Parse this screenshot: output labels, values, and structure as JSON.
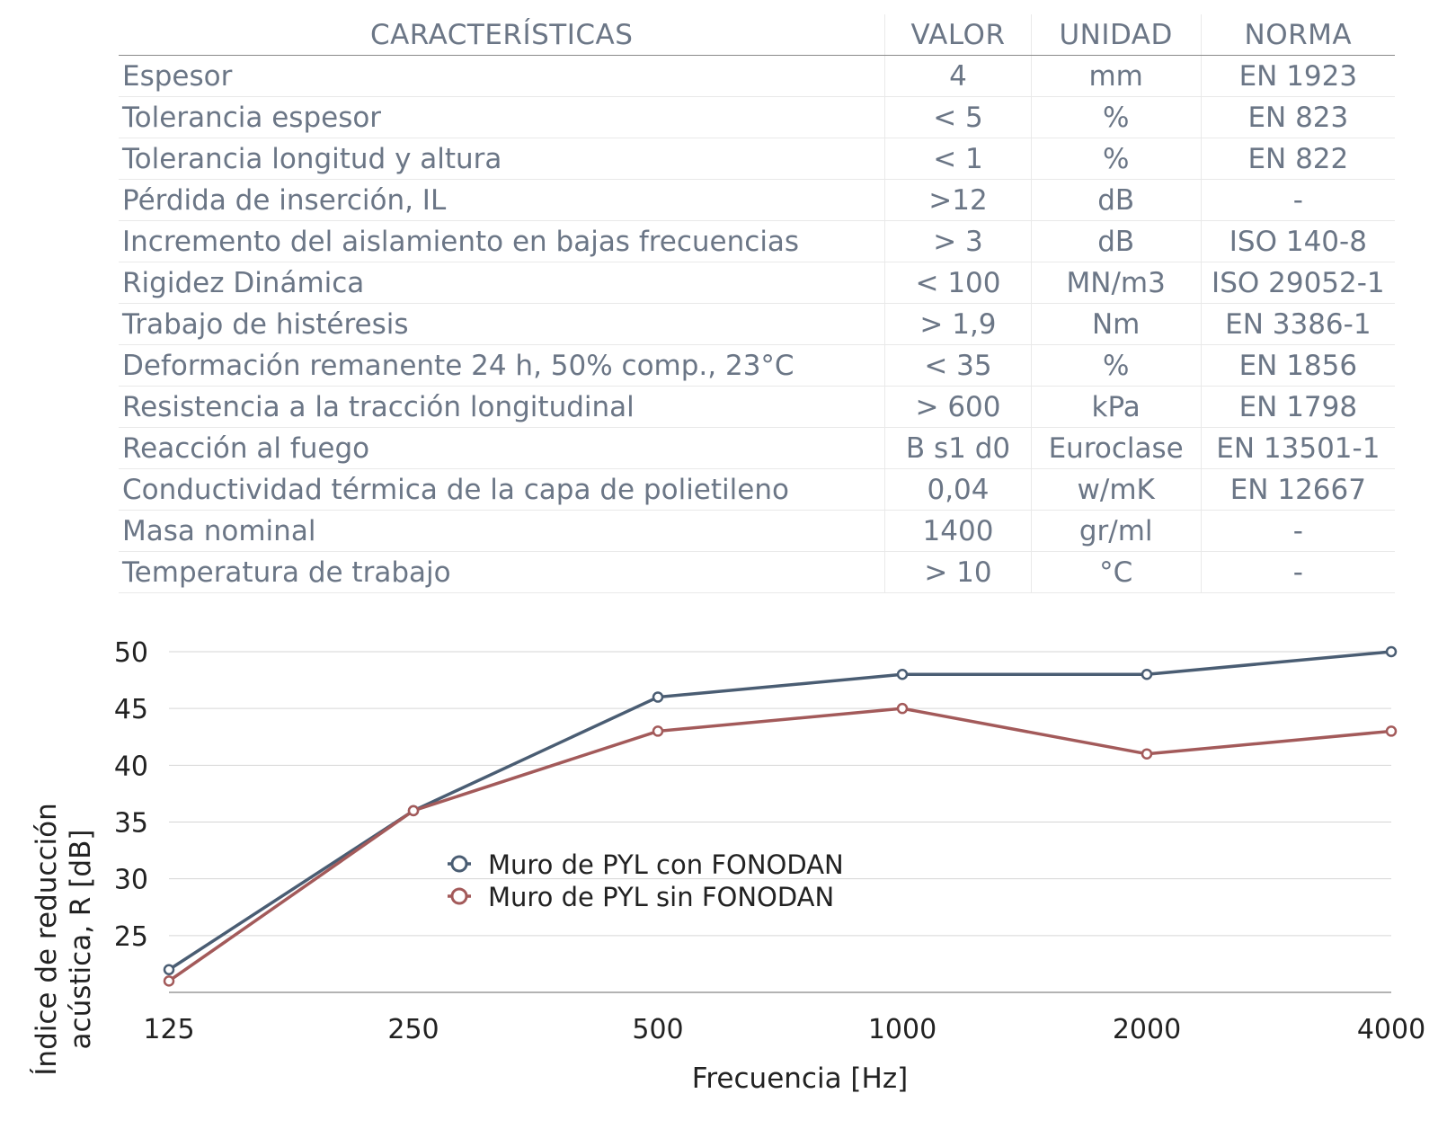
{
  "table": {
    "headers": [
      "CARACTERÍSTICAS",
      "VALOR",
      "UNIDAD",
      "NORMA"
    ],
    "rows": [
      [
        "Espesor",
        "4",
        "mm",
        "EN 1923"
      ],
      [
        "Tolerancia espesor",
        "< 5",
        "%",
        "EN 823"
      ],
      [
        "Tolerancia longitud y altura",
        "< 1",
        "%",
        "EN 822"
      ],
      [
        "Pérdida de inserción, IL",
        ">12",
        "dB",
        "-"
      ],
      [
        "Incremento del aislamiento en bajas frecuencias",
        "> 3",
        "dB",
        "ISO 140-8"
      ],
      [
        "Rigidez Dinámica",
        "< 100",
        "MN/m3",
        "ISO 29052-1"
      ],
      [
        "Trabajo de histéresis",
        "> 1,9",
        "Nm",
        "EN 3386-1"
      ],
      [
        "Deformación remanente 24 h, 50% comp., 23°C",
        "< 35",
        "%",
        "EN 1856"
      ],
      [
        "Resistencia a la tracción longitudinal",
        "> 600",
        "kPa",
        "EN 1798"
      ],
      [
        "Reacción al fuego",
        "B s1 d0",
        "Euroclase",
        "EN 13501-1"
      ],
      [
        "Conductividad térmica de la capa de polietileno",
        "0,04",
        "w/mK",
        "EN 12667"
      ],
      [
        "Masa nominal",
        "1400",
        "gr/ml",
        "-"
      ],
      [
        "Temperatura de trabajo",
        "> 10",
        "°C",
        "-"
      ]
    ]
  },
  "chart_data": {
    "type": "line",
    "title": "",
    "xlabel": "Frecuencia [Hz]",
    "ylabel_lines": [
      "Índice de reducción",
      "acústica, R [dB]"
    ],
    "categories": [
      "125",
      "250",
      "500",
      "1000",
      "2000",
      "4000"
    ],
    "yticks": [
      25,
      30,
      35,
      40,
      45,
      50
    ],
    "ylim": [
      20,
      50
    ],
    "grid": true,
    "legend_position": "center",
    "series": [
      {
        "name": "Muro de PYL con FONODAN",
        "color": "#4a5d73",
        "values": [
          22,
          36,
          46,
          48,
          48,
          50
        ]
      },
      {
        "name": "Muro de PYL sin FONODAN",
        "color": "#a35a5a",
        "values": [
          21,
          36,
          43,
          45,
          41,
          43
        ]
      }
    ]
  }
}
